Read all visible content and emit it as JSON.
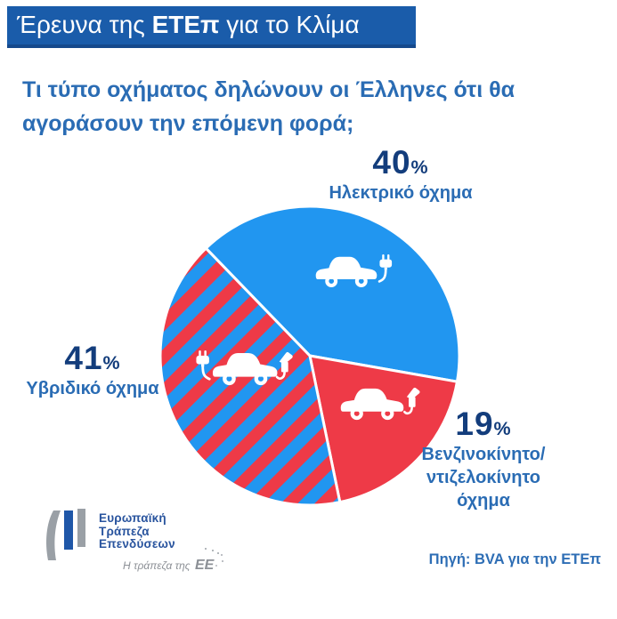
{
  "header": {
    "prefix": "Έρευνα της ",
    "brand": "ΕΤΕπ",
    "suffix": " για το Κλίμα"
  },
  "question": {
    "line1": "Τι τύπο οχήματος δηλώνουν οι Έλληνες ότι θα",
    "line2": "αγοράσουν την επόμενη φορά;"
  },
  "percent_sign": "%",
  "chart_data": {
    "type": "pie",
    "title": "Έρευνα της ΕΤΕπ για το Κλίμα",
    "question": "Τι τύπο οχήματος δηλώνουν οι Έλληνες ότι θα αγοράσουν την επόμενη φορά;",
    "start_angle_deg": 134,
    "colors": {
      "blue": "#2196f0",
      "red": "#ee3a47"
    },
    "slices": [
      {
        "id": "electric",
        "label": "Ηλεκτρικό όχημα",
        "value": 40,
        "fill": "blue",
        "icon": "electric-car"
      },
      {
        "id": "gas",
        "label": "Βενζινοκίνητο/\nντιζελοκίνητο\nόχημα",
        "value": 19,
        "fill": "red",
        "icon": "gasoline-car"
      },
      {
        "id": "hybrid",
        "label": "Υβριδικό όχημα",
        "value": 41,
        "fill": "striped-red-blue",
        "icon": "hybrid-car"
      }
    ],
    "legend_position": "around",
    "source": "Πηγή: BVA για την ΕΤΕπ"
  },
  "logo": {
    "name_line1": "Ευρωπαϊκή",
    "name_line2": "Τράπεζα",
    "name_line3": "Επενδύσεων",
    "tagline": "Η τράπεζα της",
    "tagline_eu": "ΕΕ"
  },
  "source": {
    "text": "Πηγή: BVA για την ΕΤΕπ"
  }
}
